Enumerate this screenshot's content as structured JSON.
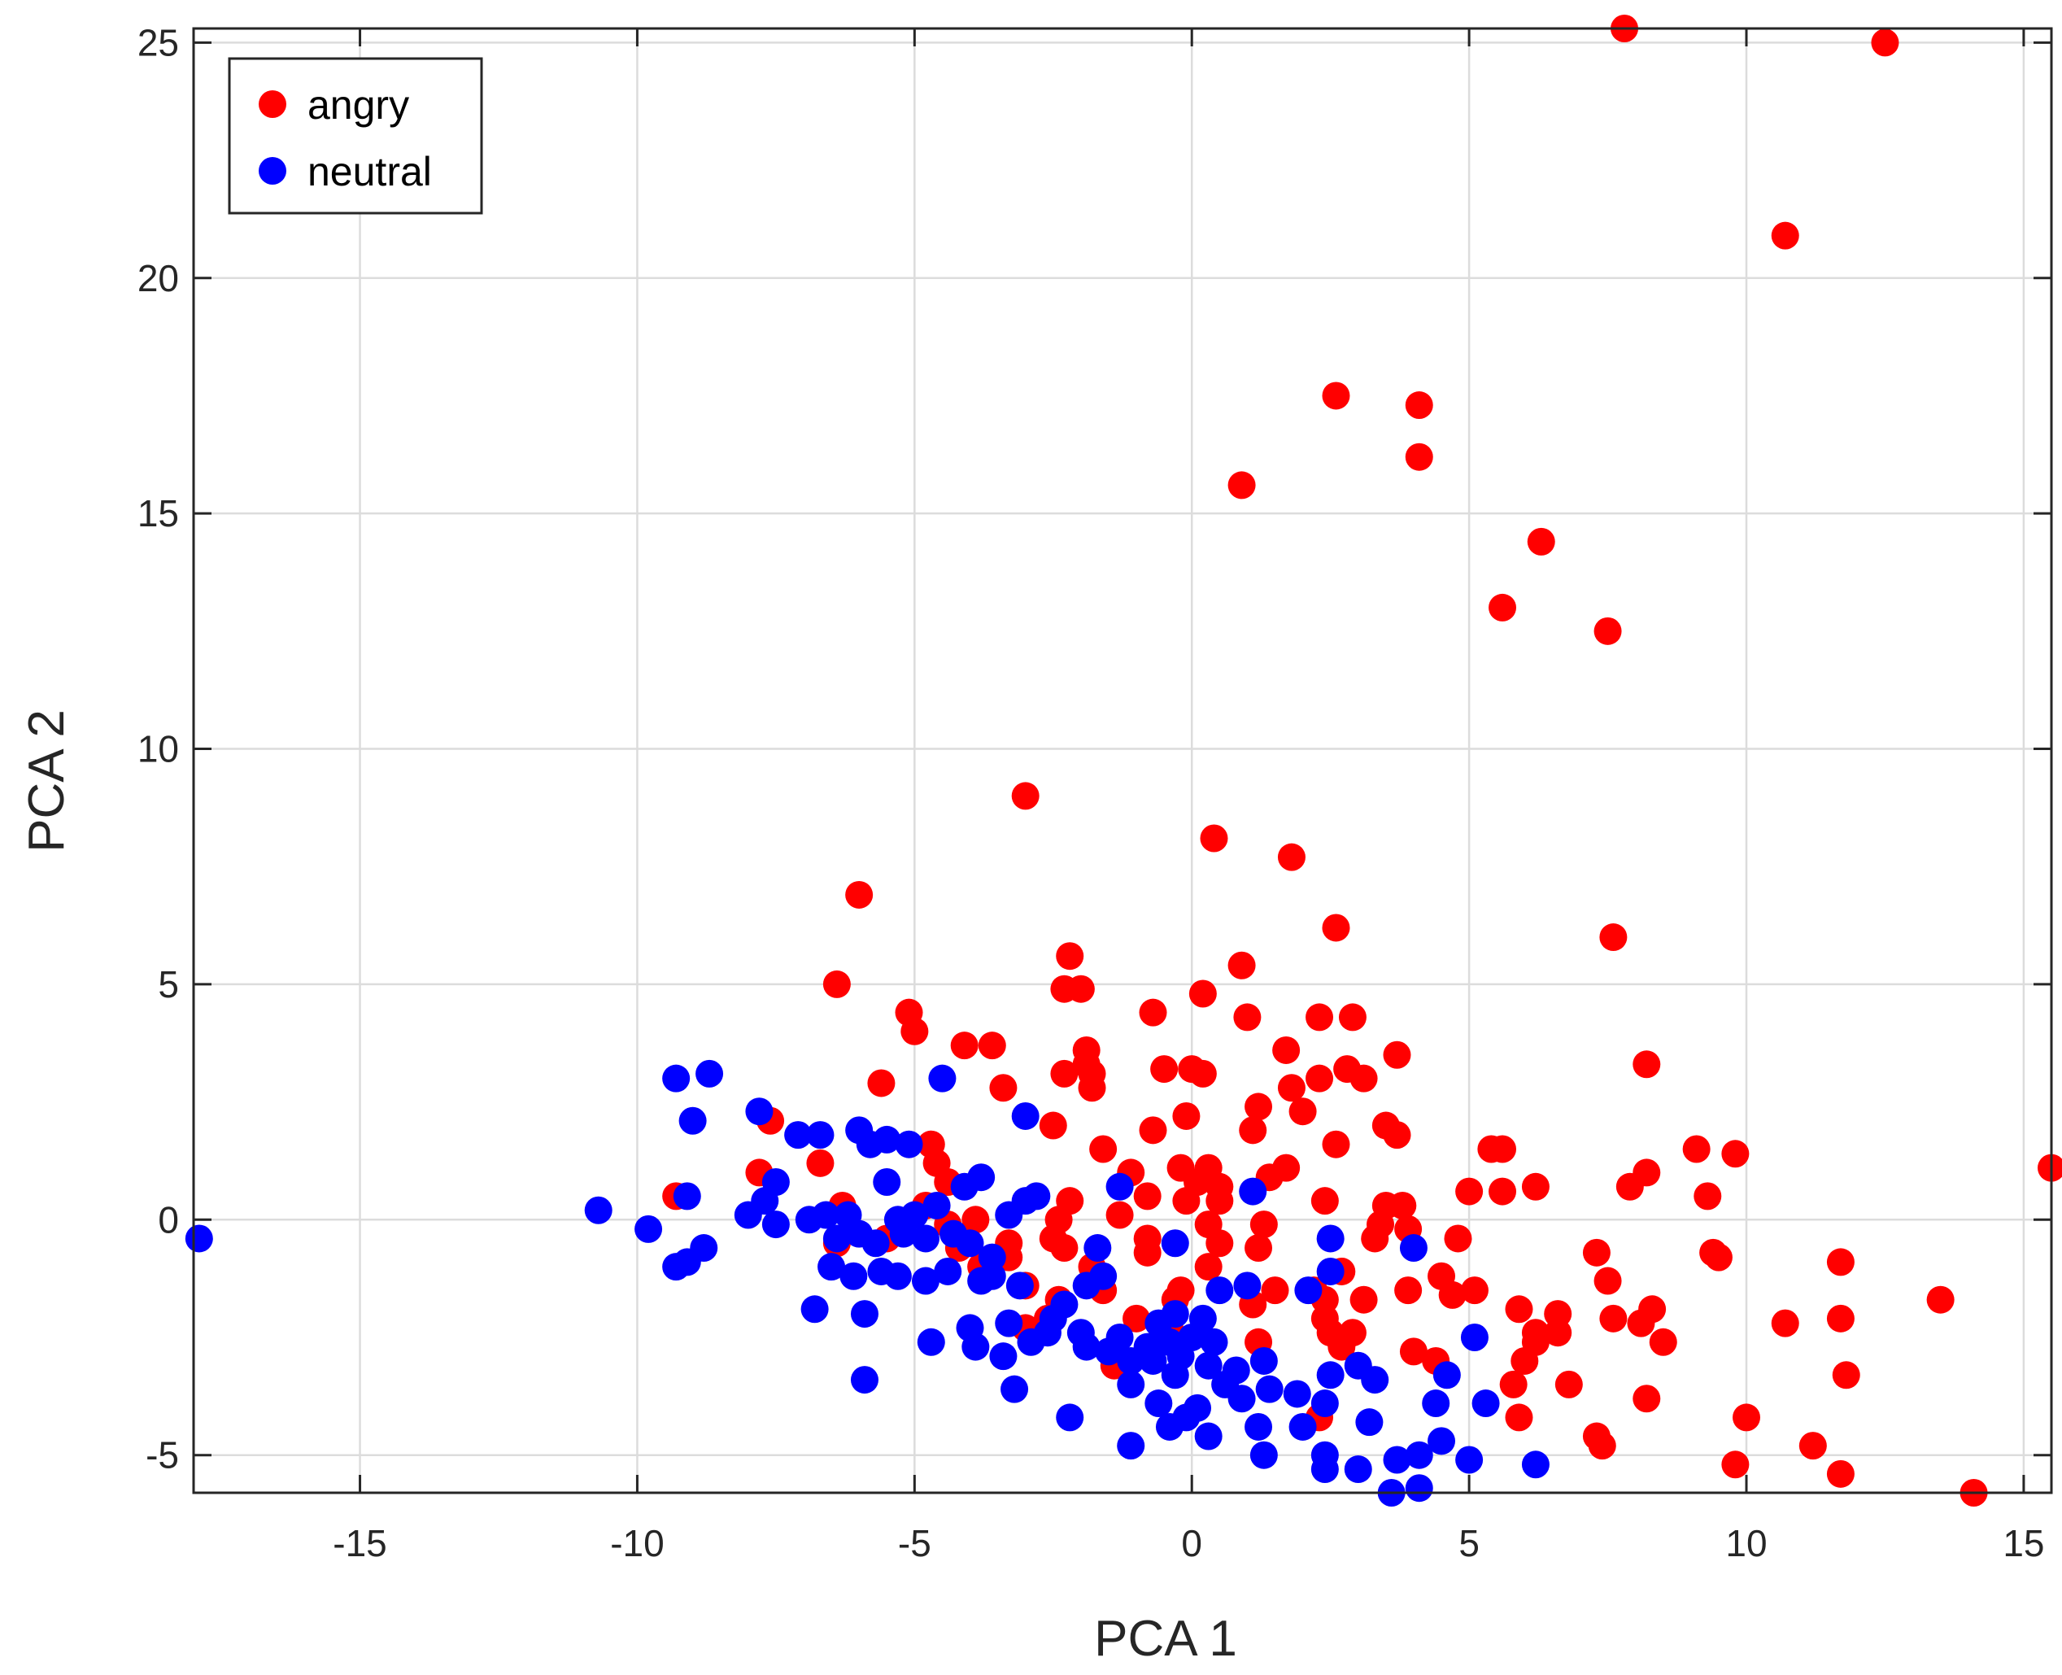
{
  "chart_data": {
    "type": "scatter",
    "xlabel": "PCA 1",
    "ylabel": "PCA 2",
    "xlim": [
      -18,
      15.5
    ],
    "ylim": [
      -5.8,
      25.3
    ],
    "xticks": [
      -15,
      -10,
      -5,
      0,
      5,
      10,
      15
    ],
    "yticks": [
      -5,
      0,
      5,
      10,
      15,
      20,
      25
    ],
    "xtick_labels": [
      "-15",
      "-10",
      "-5",
      "0",
      "5",
      "10",
      "15"
    ],
    "ytick_labels": [
      "-5",
      "0",
      "5",
      "10",
      "15",
      "20",
      "25"
    ],
    "grid": true,
    "legend_position": "top-left",
    "series": [
      {
        "name": "angry",
        "color": "#ff0000",
        "points": [
          [
            7.8,
            25.3
          ],
          [
            12.5,
            25.0
          ],
          [
            10.7,
            20.9
          ],
          [
            2.6,
            17.5
          ],
          [
            4.1,
            17.3
          ],
          [
            4.1,
            16.2
          ],
          [
            0.9,
            15.6
          ],
          [
            6.3,
            14.4
          ],
          [
            5.6,
            13.0
          ],
          [
            7.5,
            12.5
          ],
          [
            -3.0,
            9.0
          ],
          [
            0.4,
            8.1
          ],
          [
            1.8,
            7.7
          ],
          [
            -6.0,
            6.9
          ],
          [
            2.6,
            6.2
          ],
          [
            7.6,
            6.0
          ],
          [
            -2.2,
            5.6
          ],
          [
            0.9,
            5.4
          ],
          [
            -6.4,
            5.0
          ],
          [
            -2.3,
            4.9
          ],
          [
            -2.0,
            4.9
          ],
          [
            0.2,
            4.8
          ],
          [
            -5.1,
            4.4
          ],
          [
            -0.7,
            4.4
          ],
          [
            1.0,
            4.3
          ],
          [
            2.3,
            4.3
          ],
          [
            2.9,
            4.3
          ],
          [
            -5.0,
            4.0
          ],
          [
            -4.1,
            3.7
          ],
          [
            -3.6,
            3.7
          ],
          [
            -1.9,
            3.6
          ],
          [
            1.7,
            3.6
          ],
          [
            -1.9,
            3.3
          ],
          [
            3.7,
            3.5
          ],
          [
            8.2,
            3.3
          ],
          [
            -0.5,
            3.2
          ],
          [
            0.0,
            3.2
          ],
          [
            0.2,
            3.1
          ],
          [
            2.8,
            3.2
          ],
          [
            -2.3,
            3.1
          ],
          [
            -1.8,
            3.1
          ],
          [
            3.1,
            3.0
          ],
          [
            -5.6,
            2.9
          ],
          [
            -3.4,
            2.8
          ],
          [
            -1.8,
            2.8
          ],
          [
            1.8,
            2.8
          ],
          [
            2.3,
            3.0
          ],
          [
            1.2,
            2.4
          ],
          [
            -0.1,
            2.2
          ],
          [
            2.0,
            2.3
          ],
          [
            -7.6,
            2.1
          ],
          [
            -2.5,
            2.0
          ],
          [
            3.5,
            2.0
          ],
          [
            3.7,
            1.8
          ],
          [
            1.1,
            1.9
          ],
          [
            -0.7,
            1.9
          ],
          [
            -4.7,
            1.6
          ],
          [
            -1.6,
            1.5
          ],
          [
            2.6,
            1.6
          ],
          [
            5.4,
            1.5
          ],
          [
            5.6,
            1.5
          ],
          [
            9.1,
            1.5
          ],
          [
            9.8,
            1.4
          ],
          [
            -6.7,
            1.2
          ],
          [
            -4.6,
            1.2
          ],
          [
            -1.1,
            1.0
          ],
          [
            -0.2,
            1.1
          ],
          [
            0.3,
            1.1
          ],
          [
            1.7,
            1.1
          ],
          [
            1.4,
            0.9
          ],
          [
            8.2,
            1.0
          ],
          [
            15.5,
            1.1
          ],
          [
            -7.8,
            1.0
          ],
          [
            -4.4,
            0.8
          ],
          [
            0.1,
            0.8
          ],
          [
            0.5,
            0.7
          ],
          [
            5.0,
            0.6
          ],
          [
            5.6,
            0.6
          ],
          [
            6.2,
            0.7
          ],
          [
            7.9,
            0.7
          ],
          [
            9.3,
            0.5
          ],
          [
            -9.3,
            0.5
          ],
          [
            -6.3,
            0.3
          ],
          [
            -4.8,
            0.3
          ],
          [
            -2.2,
            0.4
          ],
          [
            -0.8,
            0.5
          ],
          [
            -0.1,
            0.4
          ],
          [
            0.5,
            0.4
          ],
          [
            2.4,
            0.4
          ],
          [
            3.5,
            0.3
          ],
          [
            3.8,
            0.3
          ],
          [
            -4.4,
            -0.1
          ],
          [
            -3.9,
            0.0
          ],
          [
            -2.4,
            0.0
          ],
          [
            -1.3,
            0.1
          ],
          [
            0.3,
            -0.1
          ],
          [
            1.3,
            -0.1
          ],
          [
            3.4,
            -0.1
          ],
          [
            3.9,
            -0.2
          ],
          [
            -5.5,
            -0.4
          ],
          [
            -3.3,
            -0.5
          ],
          [
            -2.5,
            -0.4
          ],
          [
            -0.8,
            -0.4
          ],
          [
            0.5,
            -0.5
          ],
          [
            3.3,
            -0.4
          ],
          [
            4.8,
            -0.4
          ],
          [
            -6.4,
            -0.5
          ],
          [
            -4.2,
            -0.6
          ],
          [
            -3.3,
            -0.8
          ],
          [
            -2.3,
            -0.6
          ],
          [
            -0.8,
            -0.7
          ],
          [
            1.2,
            -0.6
          ],
          [
            7.3,
            -0.7
          ],
          [
            9.4,
            -0.7
          ],
          [
            9.5,
            -0.8
          ],
          [
            11.7,
            -0.9
          ],
          [
            -3.8,
            -1.0
          ],
          [
            -1.8,
            -1.0
          ],
          [
            0.3,
            -1.0
          ],
          [
            2.7,
            -1.1
          ],
          [
            4.5,
            -1.2
          ],
          [
            7.5,
            -1.3
          ],
          [
            -3.0,
            -1.4
          ],
          [
            -1.6,
            -1.5
          ],
          [
            -0.2,
            -1.5
          ],
          [
            1.5,
            -1.5
          ],
          [
            2.2,
            -1.5
          ],
          [
            3.9,
            -1.5
          ],
          [
            4.7,
            -1.6
          ],
          [
            5.1,
            -1.5
          ],
          [
            -2.4,
            -1.7
          ],
          [
            -0.3,
            -1.7
          ],
          [
            1.1,
            -1.8
          ],
          [
            2.4,
            -1.7
          ],
          [
            3.1,
            -1.7
          ],
          [
            5.9,
            -1.9
          ],
          [
            6.6,
            -2.0
          ],
          [
            8.3,
            -1.9
          ],
          [
            13.5,
            -1.7
          ],
          [
            -2.6,
            -2.1
          ],
          [
            -1.0,
            -2.1
          ],
          [
            2.4,
            -2.1
          ],
          [
            7.6,
            -2.1
          ],
          [
            8.1,
            -2.2
          ],
          [
            10.7,
            -2.2
          ],
          [
            11.7,
            -2.1
          ],
          [
            -3.0,
            -2.3
          ],
          [
            -0.4,
            -2.3
          ],
          [
            2.5,
            -2.4
          ],
          [
            2.9,
            -2.4
          ],
          [
            6.2,
            -2.4
          ],
          [
            6.6,
            -2.4
          ],
          [
            8.5,
            -2.6
          ],
          [
            1.2,
            -2.6
          ],
          [
            2.7,
            -2.7
          ],
          [
            4.0,
            -2.8
          ],
          [
            6.2,
            -2.6
          ],
          [
            4.4,
            -3.0
          ],
          [
            6.0,
            -3.0
          ],
          [
            -1.4,
            -3.1
          ],
          [
            11.8,
            -3.3
          ],
          [
            5.8,
            -3.5
          ],
          [
            6.8,
            -3.5
          ],
          [
            8.2,
            -3.8
          ],
          [
            5.9,
            -4.2
          ],
          [
            2.3,
            -4.2
          ],
          [
            10.0,
            -4.2
          ],
          [
            7.3,
            -4.6
          ],
          [
            7.4,
            -4.8
          ],
          [
            11.2,
            -4.8
          ],
          [
            9.8,
            -5.2
          ],
          [
            11.7,
            -5.4
          ],
          [
            14.1,
            -5.8
          ]
        ]
      },
      {
        "name": "neutral",
        "color": "#0000ff",
        "points": [
          [
            -17.9,
            -0.4
          ],
          [
            -10.7,
            0.2
          ],
          [
            -9.8,
            -0.2
          ],
          [
            -9.3,
            3.0
          ],
          [
            -8.7,
            3.1
          ],
          [
            -9.0,
            2.1
          ],
          [
            -9.1,
            0.5
          ],
          [
            -9.3,
            -1.0
          ],
          [
            -9.1,
            -0.9
          ],
          [
            -8.8,
            -0.6
          ],
          [
            -7.8,
            2.3
          ],
          [
            -7.1,
            1.8
          ],
          [
            -6.7,
            1.8
          ],
          [
            -6.0,
            1.9
          ],
          [
            -5.8,
            1.6
          ],
          [
            -5.5,
            1.7
          ],
          [
            -5.1,
            1.6
          ],
          [
            -4.5,
            3.0
          ],
          [
            -3.0,
            2.2
          ],
          [
            -7.7,
            0.4
          ],
          [
            -7.5,
            0.8
          ],
          [
            -8.0,
            0.1
          ],
          [
            -7.5,
            -0.1
          ],
          [
            -6.9,
            0.0
          ],
          [
            -6.6,
            0.1
          ],
          [
            -6.2,
            0.1
          ],
          [
            -5.5,
            0.8
          ],
          [
            -5.3,
            0.0
          ],
          [
            -5.0,
            0.1
          ],
          [
            -4.6,
            0.3
          ],
          [
            -4.1,
            0.7
          ],
          [
            -3.8,
            0.9
          ],
          [
            -3.3,
            0.1
          ],
          [
            -3.0,
            0.4
          ],
          [
            -2.8,
            0.5
          ],
          [
            -1.3,
            0.7
          ],
          [
            1.1,
            0.6
          ],
          [
            -6.4,
            -0.4
          ],
          [
            -6.0,
            -0.3
          ],
          [
            -5.7,
            -0.5
          ],
          [
            -5.2,
            -0.3
          ],
          [
            -4.8,
            -0.4
          ],
          [
            -4.3,
            -0.3
          ],
          [
            -4.0,
            -0.5
          ],
          [
            -3.6,
            -0.8
          ],
          [
            -1.7,
            -0.6
          ],
          [
            -0.3,
            -0.5
          ],
          [
            2.5,
            -0.4
          ],
          [
            4.0,
            -0.6
          ],
          [
            -6.5,
            -1.0
          ],
          [
            -6.1,
            -1.2
          ],
          [
            -5.6,
            -1.1
          ],
          [
            -5.3,
            -1.2
          ],
          [
            -4.8,
            -1.3
          ],
          [
            -4.4,
            -1.1
          ],
          [
            -3.8,
            -1.3
          ],
          [
            -3.6,
            -1.2
          ],
          [
            -3.1,
            -1.4
          ],
          [
            -1.9,
            -1.4
          ],
          [
            -1.6,
            -1.2
          ],
          [
            0.5,
            -1.5
          ],
          [
            1.0,
            -1.4
          ],
          [
            2.1,
            -1.5
          ],
          [
            2.5,
            -1.1
          ],
          [
            -6.8,
            -1.9
          ],
          [
            -5.9,
            -2.0
          ],
          [
            -4.0,
            -2.3
          ],
          [
            -3.3,
            -2.2
          ],
          [
            -2.5,
            -2.1
          ],
          [
            -2.0,
            -2.4
          ],
          [
            -0.6,
            -2.2
          ],
          [
            -0.3,
            -2.0
          ],
          [
            0.2,
            -2.1
          ],
          [
            -4.7,
            -2.6
          ],
          [
            -3.9,
            -2.7
          ],
          [
            -2.9,
            -2.6
          ],
          [
            -2.6,
            -2.4
          ],
          [
            -1.9,
            -2.7
          ],
          [
            -1.3,
            -2.5
          ],
          [
            -0.8,
            -2.7
          ],
          [
            -0.4,
            -2.6
          ],
          [
            0.0,
            -2.5
          ],
          [
            0.4,
            -2.6
          ],
          [
            5.1,
            -2.5
          ],
          [
            -3.4,
            -2.9
          ],
          [
            -1.1,
            -3.0
          ],
          [
            -0.7,
            -3.0
          ],
          [
            -0.2,
            -2.9
          ],
          [
            0.3,
            -3.1
          ],
          [
            0.8,
            -3.2
          ],
          [
            1.3,
            -3.0
          ],
          [
            2.5,
            -3.3
          ],
          [
            3.0,
            -3.1
          ],
          [
            -5.9,
            -3.4
          ],
          [
            -3.2,
            -3.6
          ],
          [
            -1.1,
            -3.5
          ],
          [
            -0.3,
            -3.3
          ],
          [
            0.6,
            -3.5
          ],
          [
            1.4,
            -3.6
          ],
          [
            1.9,
            -3.7
          ],
          [
            3.3,
            -3.4
          ],
          [
            4.6,
            -3.3
          ],
          [
            -0.6,
            -3.9
          ],
          [
            0.1,
            -4.0
          ],
          [
            0.9,
            -3.8
          ],
          [
            2.4,
            -3.9
          ],
          [
            4.4,
            -3.9
          ],
          [
            -2.2,
            -4.2
          ],
          [
            -0.4,
            -4.4
          ],
          [
            0.3,
            -4.6
          ],
          [
            1.2,
            -4.4
          ],
          [
            2.0,
            -4.4
          ],
          [
            3.2,
            -4.3
          ],
          [
            5.3,
            -3.9
          ],
          [
            -1.1,
            -4.8
          ],
          [
            1.3,
            -5.0
          ],
          [
            2.4,
            -5.0
          ],
          [
            3.7,
            -5.1
          ],
          [
            4.1,
            -5.0
          ],
          [
            -0.1,
            -4.2
          ],
          [
            2.4,
            -5.3
          ],
          [
            3.0,
            -5.3
          ],
          [
            5.0,
            -5.1
          ],
          [
            6.2,
            -5.2
          ],
          [
            3.6,
            -5.8
          ],
          [
            4.1,
            -5.7
          ],
          [
            4.5,
            -4.7
          ],
          [
            -2.3,
            -1.8
          ],
          [
            -1.5,
            -2.8
          ]
        ]
      }
    ]
  }
}
